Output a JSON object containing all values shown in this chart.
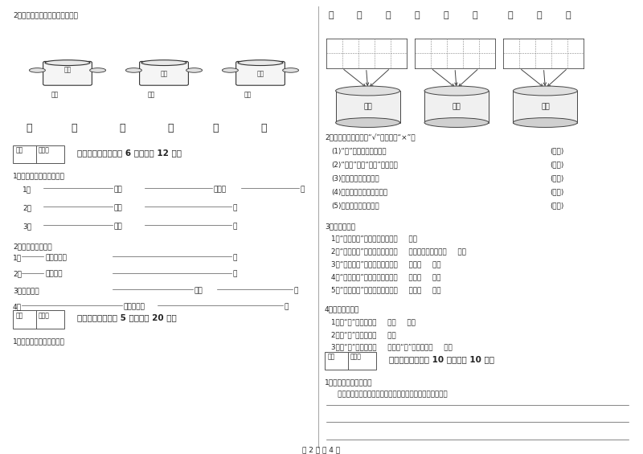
{
  "bg_color": "#ffffff",
  "left_col": {
    "section2_title": "2．我会把笔画数相同的连一连。",
    "pots": [
      "三画",
      "四画",
      "五画"
    ],
    "chars_under_pots": [
      "土",
      "木",
      "个",
      "大",
      "天",
      "禾"
    ],
    "section5_title": "五、补充句子（每题 6 分，共计 12 分）",
    "section5_sub1": "1．我会把句子补充完整。",
    "section5_sub2": "2．把句子写完整。",
    "section6_title": "六、综合题（每题 5 分，共计 20 分）",
    "section6_sub1": "1．我能让花儿开得更美。"
  },
  "right_col": {
    "chars_top": [
      "子",
      "无",
      "目",
      "也",
      "出",
      "公",
      "长",
      "头",
      "马"
    ],
    "bucket_labels": [
      "三画",
      "四画",
      "五画"
    ],
    "section2_title": "2．判断对错，对的打“√”，错的打“×”。",
    "section2_items": [
      "(1)“车”的第二笔是撇折。",
      "(2)“举头”就是“抬头”的意思。",
      "(3)弯弯的月儿像圆盘。",
      "(4)《静夜思》是李白写的。",
      "(5)阳光比金子更宝贵。"
    ],
    "section3_title": "3．你知道吗？",
    "section3_items": [
      "1．“又大又多”，写数量的字是（     ）。",
      "2．“又大又红”，写颜色的字是（     ）；写形状的起是（     ）。",
      "3．“又大又红”相对的词语是又（     ）又（     ）。",
      "4．“又大又圆”相对的词语是又（     ）又（     ）。",
      "5．“又大又多”相对的词语是又（     ）又（     ）。"
    ],
    "section4_title": "4．小小魔术柜。",
    "section4_items": [
      "1．给“一”加一笔是（     ）（     ）。",
      "2．给“木”加一笔是（     ）。",
      "3．给“十”加一笔是（     ），给“十”加两笔是（     ）。"
    ],
    "section7_title": "七、阅读题（每题 10 分，共计 10 分）",
    "section7_sub1": "1．想考一下，写一写。",
    "section7_sub2": "   你喜欢小动物吗？请选择你最喜爱的一种小动物写几句话。"
  },
  "footer": "第 2 页 共 4 页"
}
